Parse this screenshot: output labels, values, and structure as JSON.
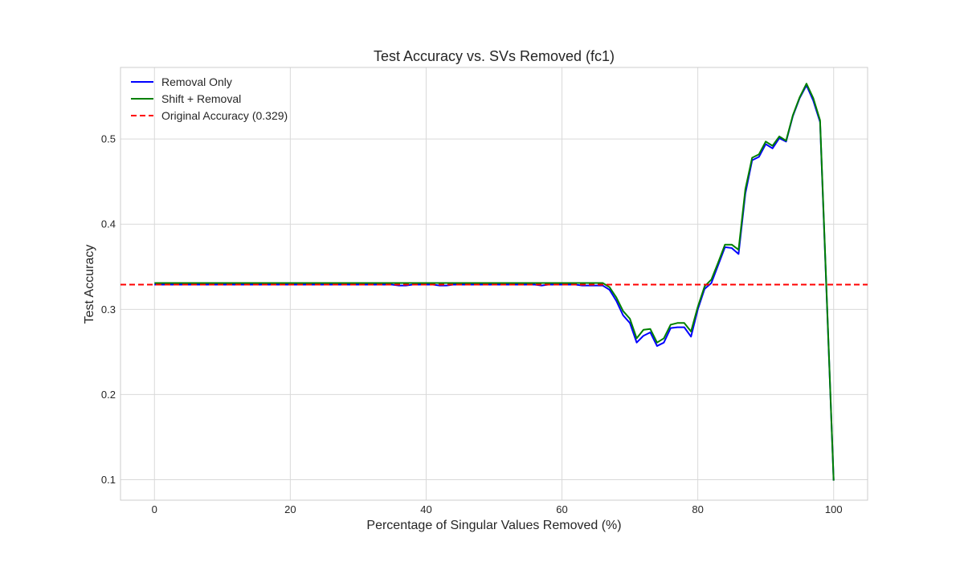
{
  "chart_data": {
    "type": "line",
    "title": "Test Accuracy vs. SVs Removed (fc1)",
    "xlabel": "Percentage of Singular Values Removed (%)",
    "ylabel": "Test Accuracy",
    "xlim": [
      -5,
      105
    ],
    "ylim": [
      0.076,
      0.584
    ],
    "xticks": [
      0,
      20,
      40,
      60,
      80,
      100
    ],
    "xtick_labels": [
      "0",
      "20",
      "40",
      "60",
      "80",
      "100"
    ],
    "yticks": [
      0.1,
      0.2,
      0.3,
      0.4,
      0.5
    ],
    "ytick_labels": [
      "0.1",
      "0.2",
      "0.3",
      "0.4",
      "0.5"
    ],
    "grid": true,
    "legend_position": "top-left",
    "series": [
      {
        "name": "Removal Only",
        "color": "#0000ff",
        "style": "solid",
        "x": [
          0,
          1,
          2,
          3,
          4,
          5,
          6,
          7,
          8,
          9,
          10,
          11,
          12,
          13,
          14,
          15,
          16,
          17,
          18,
          19,
          20,
          21,
          22,
          23,
          24,
          25,
          26,
          27,
          28,
          29,
          30,
          31,
          32,
          33,
          34,
          35,
          36,
          37,
          38,
          39,
          40,
          41,
          42,
          43,
          44,
          45,
          46,
          47,
          48,
          49,
          50,
          51,
          52,
          53,
          54,
          55,
          56,
          57,
          58,
          59,
          60,
          61,
          62,
          63,
          64,
          65,
          66,
          67,
          68,
          69,
          70,
          71,
          72,
          73,
          74,
          75,
          76,
          77,
          78,
          79,
          80,
          81,
          82,
          83,
          84,
          85,
          86,
          87,
          88,
          89,
          90,
          91,
          92,
          93,
          94,
          95,
          96,
          97,
          98,
          99,
          100
        ],
        "values": [
          0.329,
          0.329,
          0.329,
          0.329,
          0.329,
          0.329,
          0.329,
          0.329,
          0.329,
          0.329,
          0.329,
          0.329,
          0.329,
          0.329,
          0.329,
          0.329,
          0.329,
          0.329,
          0.329,
          0.329,
          0.329,
          0.329,
          0.329,
          0.329,
          0.329,
          0.329,
          0.329,
          0.329,
          0.329,
          0.329,
          0.329,
          0.329,
          0.329,
          0.329,
          0.329,
          0.329,
          0.328,
          0.328,
          0.329,
          0.329,
          0.329,
          0.329,
          0.328,
          0.328,
          0.329,
          0.329,
          0.329,
          0.329,
          0.329,
          0.329,
          0.329,
          0.329,
          0.329,
          0.329,
          0.329,
          0.329,
          0.329,
          0.328,
          0.329,
          0.329,
          0.329,
          0.329,
          0.329,
          0.328,
          0.328,
          0.328,
          0.328,
          0.323,
          0.31,
          0.293,
          0.284,
          0.261,
          0.269,
          0.273,
          0.257,
          0.261,
          0.278,
          0.279,
          0.279,
          0.268,
          0.3,
          0.324,
          0.331,
          0.352,
          0.373,
          0.372,
          0.365,
          0.436,
          0.475,
          0.479,
          0.494,
          0.489,
          0.501,
          0.497,
          0.527,
          0.548,
          0.563,
          0.545,
          0.52,
          0.31,
          0.099
        ]
      },
      {
        "name": "Shift + Removal",
        "color": "#008000",
        "style": "solid",
        "x": [
          0,
          1,
          2,
          3,
          4,
          5,
          6,
          7,
          8,
          9,
          10,
          11,
          12,
          13,
          14,
          15,
          16,
          17,
          18,
          19,
          20,
          21,
          22,
          23,
          24,
          25,
          26,
          27,
          28,
          29,
          30,
          31,
          32,
          33,
          34,
          35,
          36,
          37,
          38,
          39,
          40,
          41,
          42,
          43,
          44,
          45,
          46,
          47,
          48,
          49,
          50,
          51,
          52,
          53,
          54,
          55,
          56,
          57,
          58,
          59,
          60,
          61,
          62,
          63,
          64,
          65,
          66,
          67,
          68,
          69,
          70,
          71,
          72,
          73,
          74,
          75,
          76,
          77,
          78,
          79,
          80,
          81,
          82,
          83,
          84,
          85,
          86,
          87,
          88,
          89,
          90,
          91,
          92,
          93,
          94,
          95,
          96,
          97,
          98,
          99,
          100
        ],
        "values": [
          0.331,
          0.331,
          0.331,
          0.331,
          0.331,
          0.331,
          0.331,
          0.331,
          0.331,
          0.331,
          0.331,
          0.331,
          0.331,
          0.331,
          0.331,
          0.331,
          0.331,
          0.331,
          0.331,
          0.331,
          0.331,
          0.331,
          0.331,
          0.331,
          0.331,
          0.331,
          0.331,
          0.331,
          0.331,
          0.331,
          0.331,
          0.331,
          0.331,
          0.331,
          0.331,
          0.331,
          0.331,
          0.331,
          0.331,
          0.331,
          0.331,
          0.331,
          0.331,
          0.331,
          0.331,
          0.331,
          0.331,
          0.331,
          0.331,
          0.331,
          0.331,
          0.331,
          0.331,
          0.331,
          0.331,
          0.331,
          0.331,
          0.331,
          0.331,
          0.331,
          0.331,
          0.331,
          0.331,
          0.331,
          0.331,
          0.331,
          0.331,
          0.326,
          0.314,
          0.298,
          0.289,
          0.266,
          0.276,
          0.277,
          0.261,
          0.266,
          0.282,
          0.284,
          0.284,
          0.274,
          0.303,
          0.327,
          0.335,
          0.355,
          0.376,
          0.376,
          0.37,
          0.441,
          0.478,
          0.482,
          0.497,
          0.492,
          0.503,
          0.498,
          0.528,
          0.549,
          0.565,
          0.548,
          0.522,
          0.312,
          0.099
        ]
      },
      {
        "name": "Original Accuracy (0.329)",
        "color": "#ff0000",
        "style": "dashed",
        "hline": 0.329
      }
    ]
  }
}
